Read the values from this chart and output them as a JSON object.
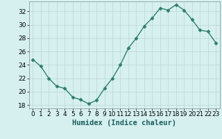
{
  "x": [
    0,
    1,
    2,
    3,
    4,
    5,
    6,
    7,
    8,
    9,
    10,
    11,
    12,
    13,
    14,
    15,
    16,
    17,
    18,
    19,
    20,
    21,
    22,
    23
  ],
  "y": [
    24.8,
    23.8,
    22.0,
    20.8,
    20.5,
    19.2,
    18.8,
    18.2,
    18.7,
    20.5,
    22.0,
    24.0,
    26.5,
    28.0,
    29.8,
    31.0,
    32.5,
    32.2,
    33.0,
    32.2,
    30.8,
    29.2,
    29.0,
    27.3
  ],
  "line_color": "#2e7d6e",
  "marker": "D",
  "marker_size": 2.5,
  "bg_color": "#d6f0f0",
  "grid_color": "#c0dada",
  "xlabel": "Humidex (Indice chaleur)",
  "xlim": [
    -0.5,
    23.5
  ],
  "ylim": [
    17.5,
    33.5
  ],
  "yticks": [
    18,
    20,
    22,
    24,
    26,
    28,
    30,
    32
  ],
  "xticks": [
    0,
    1,
    2,
    3,
    4,
    5,
    6,
    7,
    8,
    9,
    10,
    11,
    12,
    13,
    14,
    15,
    16,
    17,
    18,
    19,
    20,
    21,
    22,
    23
  ],
  "xlabel_fontsize": 7.5,
  "tick_fontsize": 6.5,
  "line_width": 1.0
}
